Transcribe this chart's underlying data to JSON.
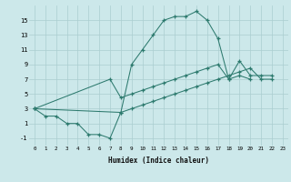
{
  "bg_color": "#cce8ea",
  "grid_color": "#aacdd0",
  "line_color": "#2d7a6e",
  "xlabel": "Humidex (Indice chaleur)",
  "ylim": [
    -2,
    17
  ],
  "xlim": [
    -0.5,
    23.5
  ],
  "yticks": [
    -1,
    1,
    3,
    5,
    7,
    9,
    11,
    13,
    15
  ],
  "xticks": [
    0,
    1,
    2,
    3,
    4,
    5,
    6,
    7,
    8,
    9,
    10,
    11,
    12,
    13,
    14,
    15,
    16,
    17,
    18,
    19,
    20,
    21,
    22,
    23
  ],
  "line1_x": [
    0,
    1,
    2,
    3,
    4,
    5,
    6,
    7,
    8,
    9,
    10,
    11,
    12,
    13,
    14,
    15,
    16,
    17,
    18,
    19,
    20
  ],
  "line1_y": [
    3,
    2,
    2,
    1,
    1,
    -0.5,
    -0.5,
    -1,
    2.5,
    9,
    11,
    13,
    15,
    15.5,
    15.5,
    16.2,
    15,
    12.5,
    7,
    7.5,
    7
  ],
  "line2_x": [
    0,
    7,
    8,
    9,
    10,
    11,
    12,
    13,
    14,
    15,
    16,
    17,
    18,
    19,
    20,
    21,
    22
  ],
  "line2_y": [
    3,
    7,
    4.5,
    5,
    5.5,
    6,
    6.5,
    7,
    7.5,
    8,
    8.5,
    9,
    7,
    9.5,
    7.5,
    7.5,
    7.5
  ],
  "line3_x": [
    0,
    8,
    9,
    10,
    11,
    12,
    13,
    14,
    15,
    16,
    17,
    18,
    19,
    20,
    21,
    22
  ],
  "line3_y": [
    3,
    2.5,
    3,
    3.5,
    4,
    4.5,
    5,
    5.5,
    6,
    6.5,
    7,
    7.5,
    8,
    8.5,
    7,
    7
  ]
}
